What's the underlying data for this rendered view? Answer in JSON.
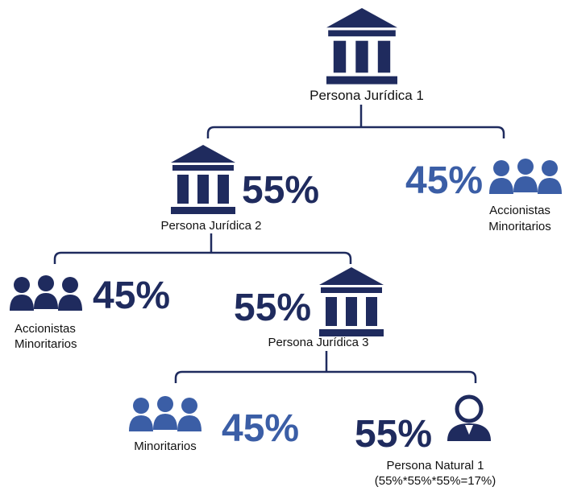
{
  "nodes": [
    {
      "label": "Persona Jurídica 1"
    },
    {
      "label": "Persona Jurídica 2",
      "share": "55%"
    },
    {
      "label": [
        "Accionistas",
        "Minoritarios"
      ],
      "share": "45%"
    },
    {
      "label": [
        "Accionistas",
        "Minoritarios"
      ],
      "share": "45%"
    },
    {
      "label": "Persona Jurídica 3",
      "share": "55%"
    },
    {
      "label": "Minoritarios",
      "share": "45%"
    },
    {
      "label": [
        "Persona Natural 1",
        "(55%*55%*55%=17%)"
      ],
      "share": "55%"
    }
  ]
}
